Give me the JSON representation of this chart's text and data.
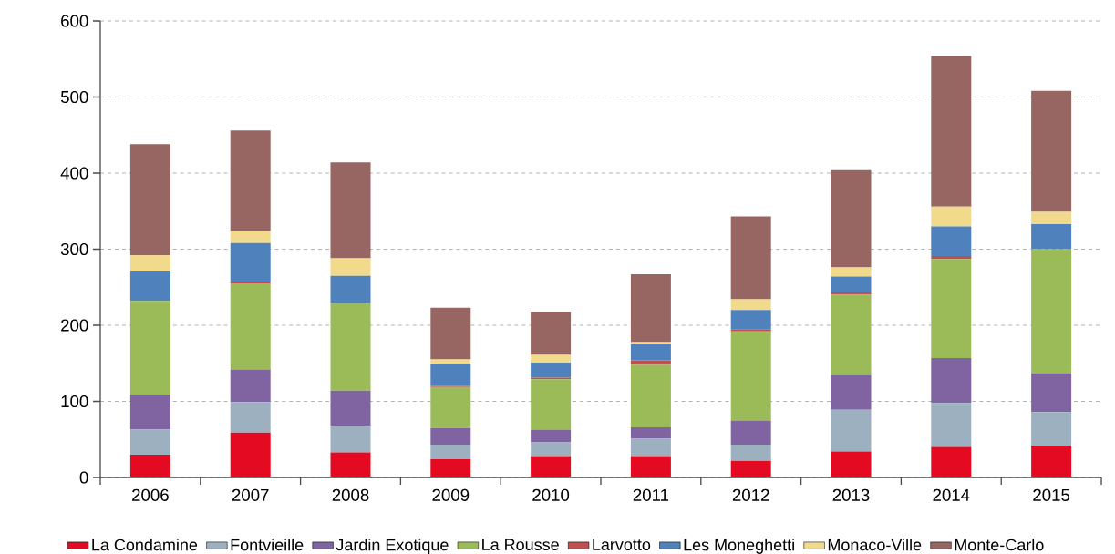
{
  "chart_data": {
    "type": "bar",
    "stacked": true,
    "categories": [
      "2006",
      "2007",
      "2008",
      "2009",
      "2010",
      "2011",
      "2012",
      "2013",
      "2014",
      "2015"
    ],
    "series": [
      {
        "name": "La Condamine",
        "color": "#e30a22",
        "values": [
          30,
          59,
          33,
          24,
          28,
          28,
          22,
          34,
          40,
          42
        ]
      },
      {
        "name": "Fontvieille",
        "color": "#9db0c0",
        "values": [
          33,
          40,
          35,
          19,
          18,
          23,
          21,
          55,
          58,
          44
        ]
      },
      {
        "name": "Jardin Exotique",
        "color": "#8064a2",
        "values": [
          46,
          43,
          46,
          22,
          17,
          15,
          32,
          45,
          59,
          51
        ]
      },
      {
        "name": "La Rousse",
        "color": "#9bbb59",
        "values": [
          123,
          113,
          115,
          54,
          66,
          82,
          117,
          106,
          130,
          163
        ]
      },
      {
        "name": "Larvotto",
        "color": "#c0504d",
        "values": [
          0,
          2,
          0,
          1,
          2,
          6,
          3,
          3,
          4,
          0
        ]
      },
      {
        "name": "Les Moneghetti",
        "color": "#4f81bd",
        "values": [
          40,
          51,
          36,
          29,
          20,
          21,
          25,
          21,
          39,
          33
        ]
      },
      {
        "name": "Monaco-Ville",
        "color": "#f2da8c",
        "values": [
          20,
          16,
          23,
          6,
          10,
          3,
          14,
          12,
          26,
          16
        ]
      },
      {
        "name": "Monte-Carlo",
        "color": "#976663",
        "values": [
          146,
          132,
          126,
          68,
          57,
          89,
          109,
          128,
          198,
          159
        ]
      }
    ],
    "ylim": [
      0,
      600
    ],
    "yticks": [
      0,
      100,
      200,
      300,
      400,
      500,
      600
    ],
    "grid": "y",
    "legend": "bottom"
  }
}
